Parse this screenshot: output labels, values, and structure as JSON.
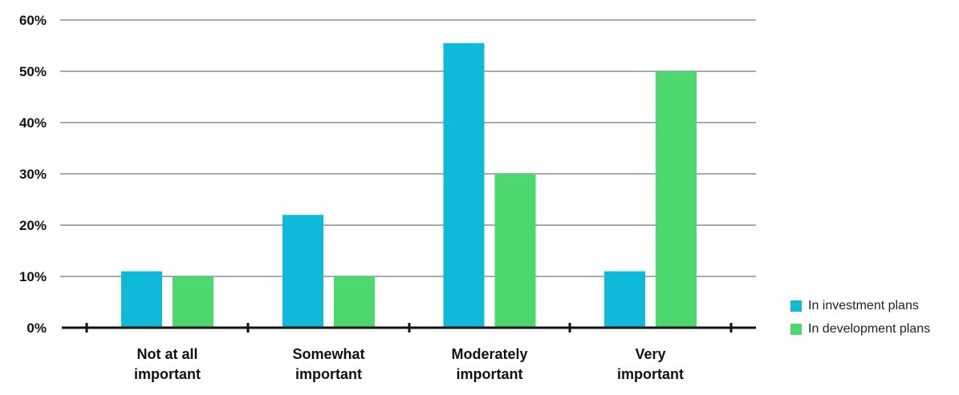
{
  "chart_data": {
    "type": "bar",
    "categories": [
      "Not at all important",
      "Somewhat important",
      "Moderately important",
      "Very important"
    ],
    "category_lines": [
      [
        "Not at all",
        "important"
      ],
      [
        "Somewhat",
        "important"
      ],
      [
        "Moderately",
        "important"
      ],
      [
        "Very",
        "important"
      ]
    ],
    "series": [
      {
        "name": "In investment plans",
        "color": "#0FBAD8",
        "values": [
          11,
          22,
          55.5,
          11
        ]
      },
      {
        "name": "In development plans",
        "color": "#4CD86E",
        "values": [
          10,
          10,
          30,
          50
        ]
      }
    ],
    "ylim": [
      0,
      60
    ],
    "yticks": [
      0,
      10,
      20,
      30,
      40,
      50,
      60
    ],
    "ytick_labels": [
      "0%",
      "10%",
      "20%",
      "30%",
      "40%",
      "50%",
      "60%"
    ],
    "grid": true,
    "legend_position": "bottom-right"
  }
}
